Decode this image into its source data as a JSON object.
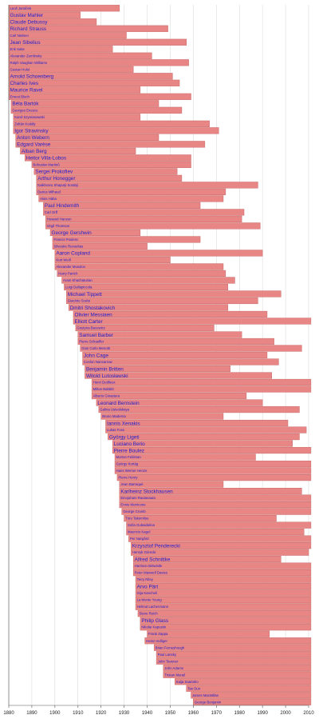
{
  "chart_data": {
    "type": "bar",
    "orientation": "horizontal-timeline",
    "xlim": [
      1880,
      2010
    ],
    "xticks": [
      "1880",
      "1890",
      "1900",
      "1910",
      "1920",
      "1930",
      "1940",
      "1950",
      "1960",
      "1970",
      "1980",
      "1990",
      "2000",
      "2010"
    ],
    "grid": true,
    "bar_color": "#e88585",
    "label_color": "#2222cc",
    "series": [
      {
        "name": "Leoš Janáček",
        "start": 1854,
        "end": 1928,
        "emph": 0
      },
      {
        "name": "Gustav Mahler",
        "start": 1860,
        "end": 1911,
        "emph": 1
      },
      {
        "name": "Claude Debussy",
        "start": 1862,
        "end": 1918,
        "emph": 1
      },
      {
        "name": "Richard Strauss",
        "start": 1864,
        "end": 1949,
        "emph": 1
      },
      {
        "name": "Carl Nielsen",
        "start": 1865,
        "end": 1931,
        "emph": 0
      },
      {
        "name": "Jean Sibelius",
        "start": 1865,
        "end": 1957,
        "emph": 1
      },
      {
        "name": "Erik Satie",
        "start": 1866,
        "end": 1925,
        "emph": 0
      },
      {
        "name": "Alexander Zemlinsky",
        "start": 1871,
        "end": 1942,
        "emph": 0
      },
      {
        "name": "Ralph Vaughan Williams",
        "start": 1872,
        "end": 1958,
        "emph": 0
      },
      {
        "name": "Gustav Holst",
        "start": 1874,
        "end": 1934,
        "emph": 0
      },
      {
        "name": "Arnold Schoenberg",
        "start": 1874,
        "end": 1951,
        "emph": 1
      },
      {
        "name": "Charles Ives",
        "start": 1874,
        "end": 1954,
        "emph": 1
      },
      {
        "name": "Maurice Ravel",
        "start": 1875,
        "end": 1937,
        "emph": 1
      },
      {
        "name": "Ernest Bloch",
        "start": 1880,
        "end": 1959,
        "emph": 0
      },
      {
        "name": "Béla Bartók",
        "start": 1881,
        "end": 1945,
        "emph": 1
      },
      {
        "name": "Georges Enescu",
        "start": 1881,
        "end": 1955,
        "emph": 0
      },
      {
        "name": "Karol Szymanowski",
        "start": 1882,
        "end": 1937,
        "emph": 0
      },
      {
        "name": "Zoltán Kodály",
        "start": 1882,
        "end": 1967,
        "emph": 0
      },
      {
        "name": "Igor Stravinsky",
        "start": 1882,
        "end": 1971,
        "emph": 1
      },
      {
        "name": "Anton Webern",
        "start": 1883,
        "end": 1945,
        "emph": 1
      },
      {
        "name": "Edgard Varèse",
        "start": 1883,
        "end": 1965,
        "emph": 1
      },
      {
        "name": "Alban Berg",
        "start": 1885,
        "end": 1935,
        "emph": 1
      },
      {
        "name": "Heitor Villa-Lobos",
        "start": 1887,
        "end": 1959,
        "emph": 1
      },
      {
        "name": "Bohuslav Martinů",
        "start": 1890,
        "end": 1959,
        "emph": 0
      },
      {
        "name": "Sergei Prokofiev",
        "start": 1891,
        "end": 1953,
        "emph": 1
      },
      {
        "name": "Arthur Honegger",
        "start": 1892,
        "end": 1955,
        "emph": 1
      },
      {
        "name": "Kaikhosru Shapurji Sorabji",
        "start": 1892,
        "end": 1988,
        "emph": 0
      },
      {
        "name": "Darius Milhaud",
        "start": 1892,
        "end": 1974,
        "emph": 0
      },
      {
        "name": "Alois Hába",
        "start": 1893,
        "end": 1973,
        "emph": 0
      },
      {
        "name": "Paul Hindemith",
        "start": 1895,
        "end": 1963,
        "emph": 1
      },
      {
        "name": "Carl Orff",
        "start": 1895,
        "end": 1982,
        "emph": 0
      },
      {
        "name": "Howard Hanson",
        "start": 1896,
        "end": 1981,
        "emph": 0
      },
      {
        "name": "Virgil Thomson",
        "start": 1896,
        "end": 1989,
        "emph": 0
      },
      {
        "name": "George Gershwin",
        "start": 1898,
        "end": 1937,
        "emph": 1
      },
      {
        "name": "Francis Poulenc",
        "start": 1899,
        "end": 1963,
        "emph": 0
      },
      {
        "name": "Silvestre Revueltas",
        "start": 1899,
        "end": 1940,
        "emph": 0
      },
      {
        "name": "Aaron Copland",
        "start": 1900,
        "end": 1990,
        "emph": 1
      },
      {
        "name": "Kurt Weill",
        "start": 1900,
        "end": 1950,
        "emph": 0
      },
      {
        "name": "Alexander Mosolov",
        "start": 1900,
        "end": 1973,
        "emph": 0
      },
      {
        "name": "Harry Partch",
        "start": 1901,
        "end": 1974,
        "emph": 0
      },
      {
        "name": "Aram Khachaturian",
        "start": 1903,
        "end": 1978,
        "emph": 0
      },
      {
        "name": "Luigi Dallapiccola",
        "start": 1904,
        "end": 1975,
        "emph": 0
      },
      {
        "name": "Michael Tippett",
        "start": 1905,
        "end": 1998,
        "emph": 1
      },
      {
        "name": "Giacinto Scelsi",
        "start": 1905,
        "end": 1988,
        "emph": 0
      },
      {
        "name": "Dmitri Shostakovich",
        "start": 1906,
        "end": 1975,
        "emph": 1
      },
      {
        "name": "Olivier Messiaen",
        "start": 1908,
        "end": 1992,
        "emph": 1
      },
      {
        "name": "Elliott Carter",
        "start": 1908,
        "end": 2012,
        "emph": 1
      },
      {
        "name": "Grażyna Bacewicz",
        "start": 1909,
        "end": 1969,
        "emph": 0
      },
      {
        "name": "Samuel Barber",
        "start": 1910,
        "end": 1981,
        "emph": 1
      },
      {
        "name": "Pierre Schaeffer",
        "start": 1910,
        "end": 1995,
        "emph": 0
      },
      {
        "name": "Gian Carlo Menotti",
        "start": 1911,
        "end": 2007,
        "emph": 0
      },
      {
        "name": "John Cage",
        "start": 1912,
        "end": 1992,
        "emph": 1
      },
      {
        "name": "Conlon Nancarrow",
        "start": 1912,
        "end": 1997,
        "emph": 0
      },
      {
        "name": "Benjamin Britten",
        "start": 1913,
        "end": 1976,
        "emph": 1
      },
      {
        "name": "Witold Lutosławski",
        "start": 1913,
        "end": 1994,
        "emph": 1
      },
      {
        "name": "Henri Dutilleux",
        "start": 1916,
        "end": 2013,
        "emph": 0
      },
      {
        "name": "Milton Babbitt",
        "start": 1916,
        "end": 2011,
        "emph": 0
      },
      {
        "name": "Alberto Ginastera",
        "start": 1916,
        "end": 1983,
        "emph": 0
      },
      {
        "name": "Leonard Bernstein",
        "start": 1918,
        "end": 1990,
        "emph": 1
      },
      {
        "name": "Galina Ustvolskaya",
        "start": 1919,
        "end": 2006,
        "emph": 0
      },
      {
        "name": "Bruno Maderna",
        "start": 1920,
        "end": 1973,
        "emph": 0
      },
      {
        "name": "Iannis Xenakis",
        "start": 1922,
        "end": 2001,
        "emph": 1
      },
      {
        "name": "Lukas Foss",
        "start": 1922,
        "end": 2009,
        "emph": 0
      },
      {
        "name": "György Ligeti",
        "start": 1923,
        "end": 2006,
        "emph": 1
      },
      {
        "name": "Luciano Berio",
        "start": 1925,
        "end": 2003,
        "emph": 1
      },
      {
        "name": "Pierre Boulez",
        "start": 1925,
        "end": 2016,
        "emph": 1
      },
      {
        "name": "Morton Feldman",
        "start": 1926,
        "end": 1987,
        "emph": 0
      },
      {
        "name": "György Kurtág",
        "start": 1926,
        "end": 2024,
        "emph": 0
      },
      {
        "name": "Hans Werner Henze",
        "start": 1926,
        "end": 2012,
        "emph": 0
      },
      {
        "name": "Pierre Henry",
        "start": 1927,
        "end": 2017,
        "emph": 0
      },
      {
        "name": "Jean Barraqué",
        "start": 1928,
        "end": 1973,
        "emph": 0
      },
      {
        "name": "Karlheinz Stockhausen",
        "start": 1928,
        "end": 2007,
        "emph": 1
      },
      {
        "name": "Einojuhani Rautavaara",
        "start": 1928,
        "end": 2016,
        "emph": 0
      },
      {
        "name": "Ennio Morricone",
        "start": 1928,
        "end": 2020,
        "emph": 0
      },
      {
        "name": "George Crumb",
        "start": 1929,
        "end": 2022,
        "emph": 0
      },
      {
        "name": "Tōru Takemitsu",
        "start": 1930,
        "end": 1996,
        "emph": 0
      },
      {
        "name": "Sofia Gubaidulina",
        "start": 1931,
        "end": 2025,
        "emph": 0
      },
      {
        "name": "Mauricio Kagel",
        "start": 1931,
        "end": 2008,
        "emph": 0
      },
      {
        "name": "Per Nørgård",
        "start": 1932,
        "end": 2025,
        "emph": 0
      },
      {
        "name": "Krzysztof Penderecki",
        "start": 1933,
        "end": 2020,
        "emph": 1
      },
      {
        "name": "Henryk Górecki",
        "start": 1933,
        "end": 2010,
        "emph": 0
      },
      {
        "name": "Alfred Schnittke",
        "start": 1934,
        "end": 1998,
        "emph": 1
      },
      {
        "name": "Harrison Birtwistle",
        "start": 1934,
        "end": 2022,
        "emph": 0
      },
      {
        "name": "Peter Maxwell Davies",
        "start": 1934,
        "end": 2016,
        "emph": 0
      },
      {
        "name": "Terry Riley",
        "start": 1935,
        "end": 2025,
        "emph": 0
      },
      {
        "name": "Arvo Pärt",
        "start": 1935,
        "end": 2025,
        "emph": 1
      },
      {
        "name": "Gija Kancheli",
        "start": 1935,
        "end": 2019,
        "emph": 0
      },
      {
        "name": "La Monte Young",
        "start": 1935,
        "end": 2025,
        "emph": 0
      },
      {
        "name": "Helmut Lachenmann",
        "start": 1935,
        "end": 2025,
        "emph": 0
      },
      {
        "name": "Steve Reich",
        "start": 1936,
        "end": 2025,
        "emph": 0
      },
      {
        "name": "Philip Glass",
        "start": 1937,
        "end": 2025,
        "emph": 1
      },
      {
        "name": "Nikolai Kapustin",
        "start": 1937,
        "end": 2020,
        "emph": 0
      },
      {
        "name": "Frank Zappa",
        "start": 1940,
        "end": 1993,
        "emph": 0
      },
      {
        "name": "Heinz Holliger",
        "start": 1939,
        "end": 2025,
        "emph": 0
      },
      {
        "name": "Brian Ferneyhough",
        "start": 1943,
        "end": 2025,
        "emph": 0
      },
      {
        "name": "Paul Lansky",
        "start": 1944,
        "end": 2025,
        "emph": 0
      },
      {
        "name": "John Tavener",
        "start": 1944,
        "end": 2013,
        "emph": 0
      },
      {
        "name": "John Adams",
        "start": 1947,
        "end": 2025,
        "emph": 0
      },
      {
        "name": "Tristan Murail",
        "start": 1947,
        "end": 2025,
        "emph": 0
      },
      {
        "name": "Kaija Saariaho",
        "start": 1952,
        "end": 2023,
        "emph": 0
      },
      {
        "name": "Tan Dun",
        "start": 1957,
        "end": 2025,
        "emph": 0
      },
      {
        "name": "James MacMillan",
        "start": 1959,
        "end": 2025,
        "emph": 0
      },
      {
        "name": "George Benjamin",
        "start": 1960,
        "end": 2025,
        "emph": 0
      }
    ]
  }
}
